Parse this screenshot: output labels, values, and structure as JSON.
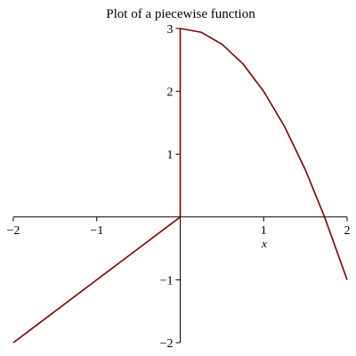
{
  "chart_data": {
    "type": "line",
    "title": "Plot of a piecewise function",
    "xlabel": "x",
    "ylabel": "",
    "xlim": [
      -2,
      2
    ],
    "ylim": [
      -2,
      3
    ],
    "x_ticks": [
      -2,
      -1,
      1,
      2
    ],
    "x_tick_labels": [
      "−2",
      "−1",
      "1",
      "2"
    ],
    "y_ticks": [
      -2,
      -1,
      1,
      2,
      3
    ],
    "y_tick_labels": [
      "−2",
      "−1",
      "1",
      "2",
      "3"
    ],
    "grid": false,
    "line_color": "#800000",
    "axis_color": "#000000",
    "series": [
      {
        "x": [
          -2,
          -1.5,
          -1,
          -0.5,
          0,
          0,
          0.25,
          0.5,
          0.75,
          1,
          1.25,
          1.5,
          1.73,
          2
        ],
        "y": [
          -2,
          -1.5,
          -1,
          -0.5,
          0,
          3,
          2.94,
          2.75,
          2.44,
          2,
          1.44,
          0.75,
          0,
          -1
        ]
      }
    ]
  }
}
